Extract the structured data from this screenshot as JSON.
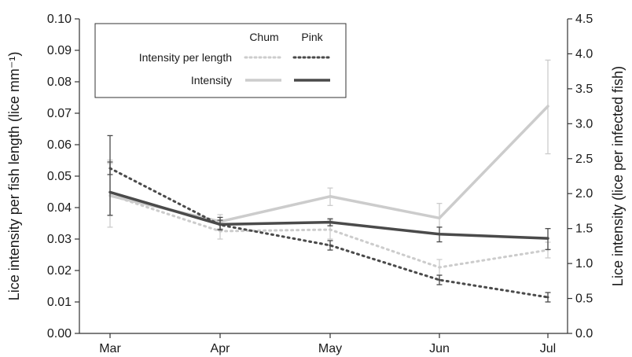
{
  "chart_data": {
    "type": "line",
    "categories": [
      "Mar",
      "Apr",
      "May",
      "Jun",
      "Jul"
    ],
    "left_axis": {
      "label": "Lice intensity per fish length (lice mm⁻¹)",
      "range": [
        0,
        0.1
      ],
      "ticks": [
        "0.00",
        "0.01",
        "0.02",
        "0.03",
        "0.04",
        "0.05",
        "0.06",
        "0.07",
        "0.08",
        "0.09",
        "0.10"
      ]
    },
    "right_axis": {
      "label": "Lice intensity (lice per infected fish)",
      "range": [
        0,
        4.5
      ],
      "ticks": [
        "0.0",
        "0.5",
        "1.0",
        "1.5",
        "2.0",
        "2.5",
        "3.0",
        "3.5",
        "4.0",
        "4.5"
      ]
    },
    "legend": {
      "placement": "top-left",
      "columns": [
        "Chum",
        "Pink"
      ],
      "rows": [
        "Intensity per length",
        "Intensity"
      ]
    },
    "series": [
      {
        "name": "Chum Intensity per length",
        "axis": "left",
        "color": "#cccccc",
        "style": "dotted",
        "values": [
          0.044,
          0.0325,
          0.033,
          0.021,
          0.0265
        ],
        "err": [
          [
            0.0375,
            0.054
          ],
          [
            0.03,
            0.035
          ],
          [
            0.03,
            0.036
          ],
          [
            0.0185,
            0.0235
          ],
          [
            0.024,
            0.029
          ]
        ]
      },
      {
        "name": "Pink Intensity per length",
        "axis": "left",
        "color": "#4a4a4a",
        "style": "dotted",
        "values": [
          0.0525,
          0.0345,
          0.028,
          0.017,
          0.0115
        ],
        "err": [
          [
            0.0505,
            0.0545
          ],
          [
            0.033,
            0.036
          ],
          [
            0.0265,
            0.0295
          ],
          [
            0.0155,
            0.0185
          ],
          [
            0.01,
            0.013
          ]
        ]
      },
      {
        "name": "Chum Intensity",
        "axis": "right",
        "color": "#cccccc",
        "style": "solid",
        "values": [
          1.97,
          1.6,
          1.96,
          1.65,
          3.25
        ],
        "err": [
          [
            1.52,
            2.48
          ],
          [
            1.5,
            1.7
          ],
          [
            1.83,
            2.08
          ],
          [
            1.52,
            1.86
          ],
          [
            2.57,
            3.91
          ]
        ]
      },
      {
        "name": "Pink Intensity",
        "axis": "right",
        "color": "#4a4a4a",
        "style": "solid",
        "values": [
          2.02,
          1.56,
          1.59,
          1.42,
          1.36
        ],
        "err": [
          [
            1.69,
            2.83
          ],
          [
            1.48,
            1.66
          ],
          [
            1.54,
            1.64
          ],
          [
            1.31,
            1.52
          ],
          [
            1.2,
            1.5
          ]
        ]
      }
    ]
  }
}
